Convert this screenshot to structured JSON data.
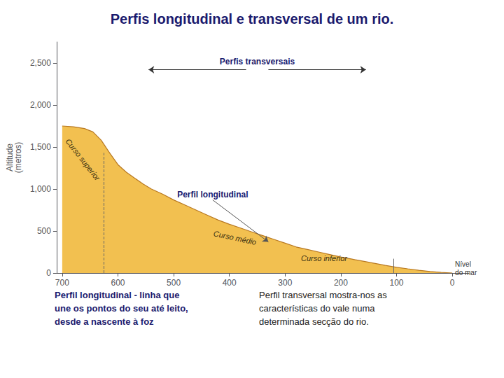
{
  "chart_data": {
    "type": "area",
    "title": "Perfis longitudinal e transversal de um rio.",
    "ylabel": "Altitude\n(metros)",
    "x": [
      700,
      680,
      660,
      645,
      630,
      615,
      600,
      585,
      570,
      555,
      540,
      520,
      500,
      480,
      460,
      440,
      420,
      400,
      380,
      360,
      340,
      320,
      300,
      280,
      260,
      240,
      220,
      200,
      180,
      160,
      140,
      120,
      100,
      80,
      60,
      40,
      20,
      5,
      0
    ],
    "values": [
      1750,
      1740,
      1720,
      1680,
      1580,
      1430,
      1290,
      1200,
      1130,
      1060,
      1000,
      940,
      870,
      810,
      750,
      690,
      630,
      580,
      535,
      490,
      445,
      400,
      355,
      310,
      280,
      250,
      220,
      190,
      165,
      140,
      115,
      90,
      68,
      50,
      33,
      18,
      7,
      2,
      0
    ],
    "color": "#f2c050",
    "xlim": [
      710,
      -30
    ],
    "xticks": [
      700,
      600,
      500,
      400,
      300,
      200,
      100,
      0
    ],
    "ylim": [
      0,
      2750
    ],
    "yticks": [
      0,
      500,
      1000,
      1500,
      2000,
      2500
    ],
    "grid": false,
    "annotations": [
      "Curso superior",
      "Curso médio",
      "Curso inferior",
      "Perfil longitudinal",
      "Nível\ndo mar",
      "Perfis transversais",
      "Perfil longitudinal - linha que\nune os pontos do seu até leito,\ndesde a nascente à foz",
      "Perfil transversal mostra-nos as\ncaracterísticas do vale numa\ndeterminada secção do rio."
    ]
  }
}
